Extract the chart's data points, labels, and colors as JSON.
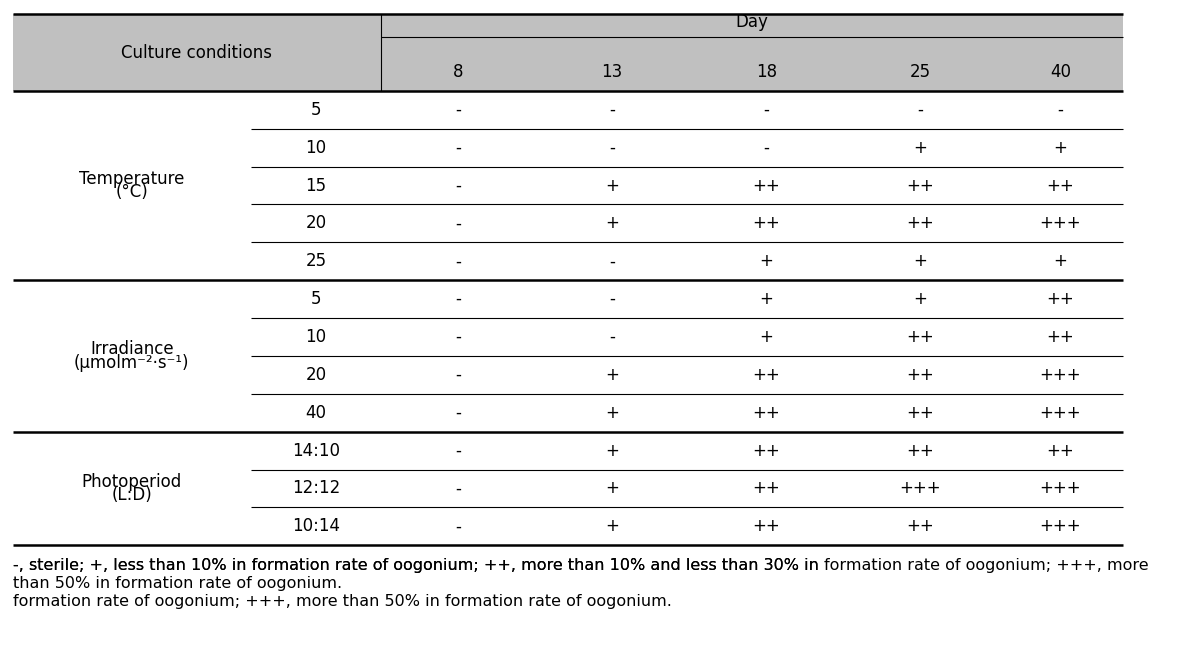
{
  "sections": [
    {
      "group_label": "Temperature",
      "group_sublabel": "(°C)",
      "rows": [
        {
          "sub": "5",
          "values": [
            "-",
            "-",
            "-",
            "-",
            "-"
          ]
        },
        {
          "sub": "10",
          "values": [
            "-",
            "-",
            "-",
            "+",
            "+"
          ]
        },
        {
          "sub": "15",
          "values": [
            "-",
            "+",
            "++",
            "++",
            "++"
          ]
        },
        {
          "sub": "20",
          "values": [
            "-",
            "+",
            "++",
            "++",
            "+++"
          ]
        },
        {
          "sub": "25",
          "values": [
            "-",
            "-",
            "+",
            "+",
            "+"
          ]
        }
      ]
    },
    {
      "group_label": "Irradiance",
      "group_sublabel": "(μmolm⁻²·s⁻¹)",
      "rows": [
        {
          "sub": "5",
          "values": [
            "-",
            "-",
            "+",
            "+",
            "++"
          ]
        },
        {
          "sub": "10",
          "values": [
            "-",
            "-",
            "+",
            "++",
            "++"
          ]
        },
        {
          "sub": "20",
          "values": [
            "-",
            "+",
            "++",
            "++",
            "+++"
          ]
        },
        {
          "sub": "40",
          "values": [
            "-",
            "+",
            "++",
            "++",
            "+++"
          ]
        }
      ]
    },
    {
      "group_label": "Photoperiod",
      "group_sublabel": "(L:D)",
      "rows": [
        {
          "sub": "14:10",
          "values": [
            "-",
            "+",
            "++",
            "++",
            "++"
          ]
        },
        {
          "sub": "12:12",
          "values": [
            "-",
            "+",
            "++",
            "+++",
            "+++"
          ]
        },
        {
          "sub": "10:14",
          "values": [
            "-",
            "+",
            "++",
            "++",
            "+++"
          ]
        }
      ]
    }
  ],
  "footnote": "-, sterile; +, less than 10% in formation rate of oogonium; ++, more than 10% and less than 30% in formation rate of oogonium; +++, more than 50% in formation rate of oogonium.",
  "header_bg": "#c0c0c0",
  "body_bg": "#ffffff",
  "text_color": "#000000",
  "font_size": 12,
  "figsize": [
    11.79,
    6.58
  ],
  "dpi": 100
}
